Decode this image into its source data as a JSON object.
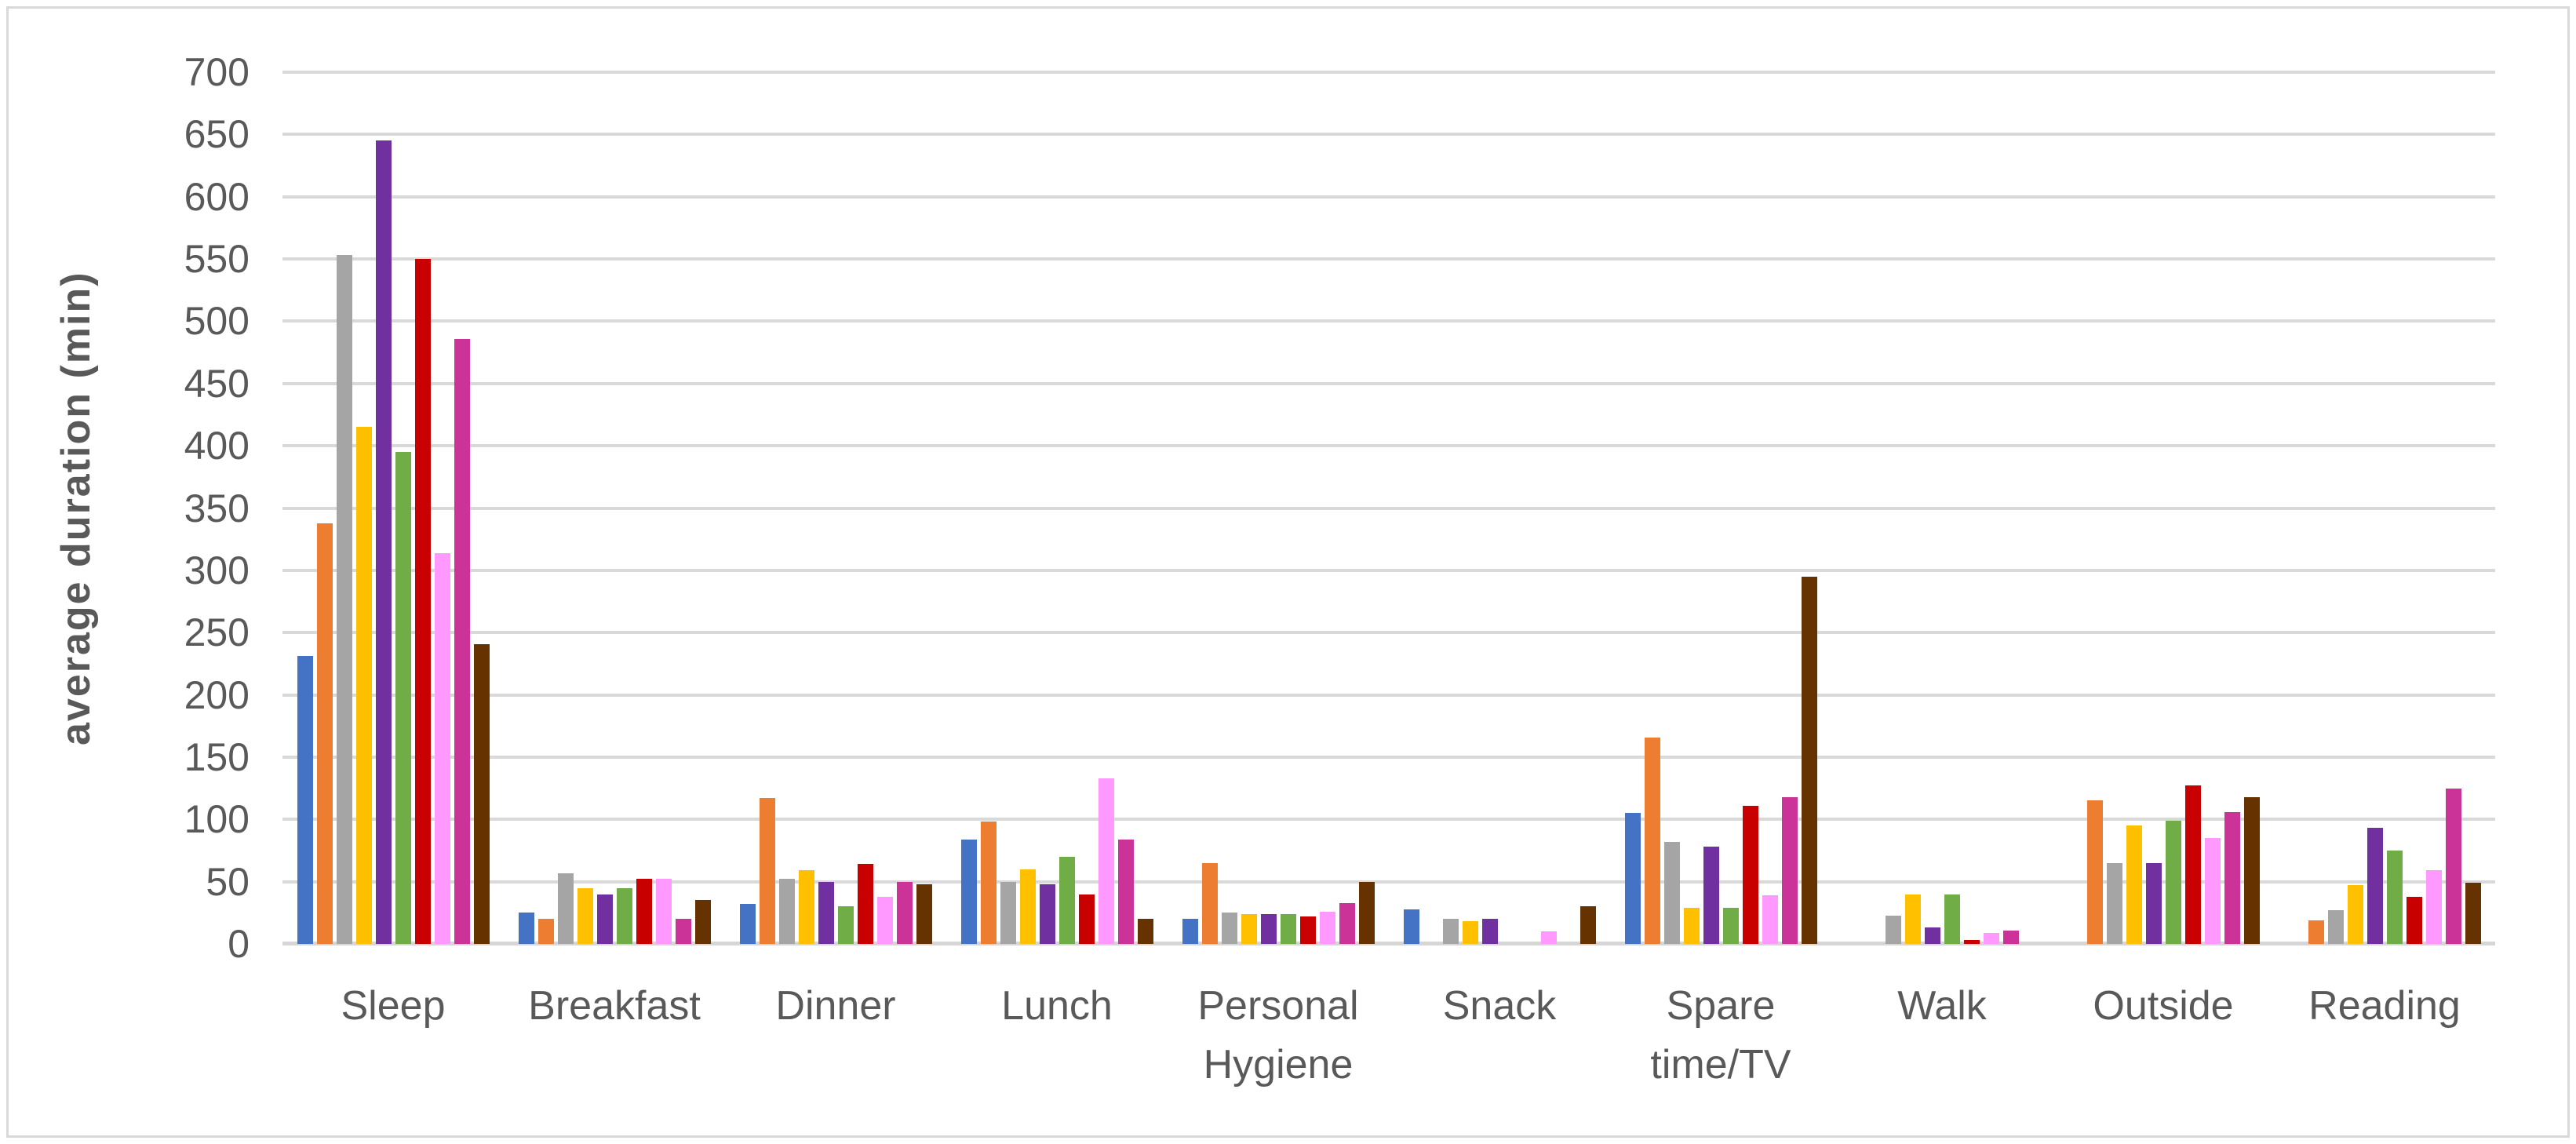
{
  "chart_data": {
    "type": "bar",
    "title": "",
    "xlabel": "",
    "ylabel": "average duration (min)",
    "ylim": [
      0,
      700
    ],
    "ytick_step": 50,
    "grid": "horizontal",
    "legend": "none",
    "categories": [
      "Sleep",
      "Breakfast",
      "Dinner",
      "Lunch",
      "Personal\nHygiene",
      "Snack",
      "Spare\ntime/TV",
      "Walk",
      "Outside",
      "Reading"
    ],
    "series": [
      {
        "name": "series-1-blue",
        "color": "#4472C4",
        "values": [
          231,
          25,
          32,
          84,
          20,
          28,
          105,
          0,
          0,
          0
        ]
      },
      {
        "name": "series-2-orange",
        "color": "#ED7D31",
        "values": [
          338,
          20,
          117,
          98,
          65,
          0,
          166,
          0,
          115,
          19
        ]
      },
      {
        "name": "series-3-gray",
        "color": "#A5A5A5",
        "values": [
          553,
          57,
          52,
          50,
          25,
          20,
          82,
          23,
          65,
          27
        ]
      },
      {
        "name": "series-4-gold",
        "color": "#FFC000",
        "values": [
          415,
          45,
          59,
          60,
          24,
          18,
          29,
          40,
          95,
          47
        ]
      },
      {
        "name": "series-5-purple",
        "color": "#7030A0",
        "values": [
          645,
          40,
          50,
          48,
          24,
          20,
          78,
          13,
          65,
          93
        ]
      },
      {
        "name": "series-6-green",
        "color": "#70AD47",
        "values": [
          395,
          45,
          30,
          70,
          24,
          0,
          29,
          40,
          99,
          75
        ]
      },
      {
        "name": "series-7-red",
        "color": "#C80000",
        "values": [
          550,
          52,
          64,
          40,
          22,
          0,
          111,
          3,
          127,
          38
        ]
      },
      {
        "name": "series-8-light-pink",
        "color": "#FF99FF",
        "values": [
          314,
          52,
          38,
          133,
          26,
          10,
          39,
          9,
          85,
          59
        ]
      },
      {
        "name": "series-9-magenta",
        "color": "#CC3399",
        "values": [
          486,
          20,
          50,
          84,
          33,
          0,
          118,
          11,
          106,
          125
        ]
      },
      {
        "name": "series-10-brown",
        "color": "#663300",
        "values": [
          241,
          35,
          48,
          20,
          50,
          30,
          295,
          0,
          118,
          49
        ]
      }
    ]
  }
}
